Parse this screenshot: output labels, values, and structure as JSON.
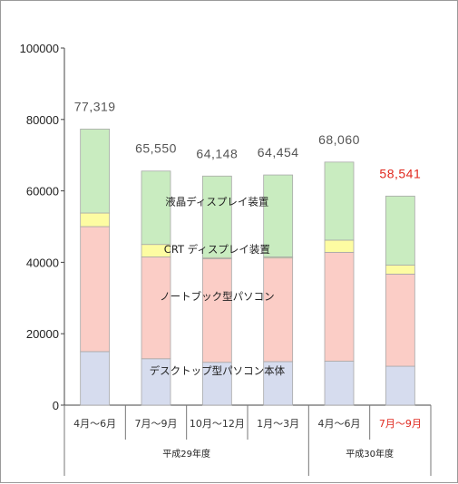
{
  "chart_data": {
    "type": "bar",
    "stacked": true,
    "categories": [
      "4月～6月",
      "7月～9月",
      "10月～12月",
      "1月～3月",
      "4月～6月",
      "7月～9月"
    ],
    "highlight_category_index": 5,
    "highlight_color": "#e0281e",
    "period_groups": [
      {
        "label": "平成29年度",
        "categories": [
          0,
          1,
          2,
          3
        ]
      },
      {
        "label": "平成30年度",
        "categories": [
          4,
          5
        ]
      }
    ],
    "ylim": [
      0,
      100000
    ],
    "yticks": [
      "0",
      "20000",
      "40000",
      "60000",
      "80000",
      "100000"
    ],
    "series": [
      {
        "name": "デスクトップ型パソコン本体",
        "color": "#d6dcee",
        "values": [
          15000,
          13000,
          12000,
          12200,
          12300,
          10900
        ]
      },
      {
        "name": "ノートブック型パソコン",
        "color": "#fbcdc6",
        "values": [
          35000,
          28500,
          29000,
          29000,
          30500,
          25800
        ]
      },
      {
        "name": "CRTディスプレイ装置",
        "color": "#fdfca2",
        "values": [
          3800,
          3500,
          300,
          300,
          3400,
          2500
        ]
      },
      {
        "name": "液晶ディスプレイ装置",
        "color": "#c9ecc0",
        "values": [
          23519,
          20550,
          22848,
          22954,
          21860,
          19341
        ]
      }
    ],
    "totals": [
      "77,319",
      "65,550",
      "64,148",
      "64,454",
      "68,060",
      "58,541"
    ],
    "annotations": [
      {
        "series": 3,
        "text": "液晶ディスプレイ装置",
        "at_category": 2.5,
        "y": 56000
      },
      {
        "series": 2,
        "text": "CRT ディスプレイ装置",
        "at_category": 2.5,
        "y": 42600
      },
      {
        "series": 1,
        "text": "ノートブック型パソコン",
        "at_category": 2.5,
        "y": 29500
      },
      {
        "series": 0,
        "text": "デスクトップ型パソコン本体",
        "at_category": 2.5,
        "y": 8600
      }
    ],
    "grid": false,
    "legend": "inline-annotations"
  }
}
